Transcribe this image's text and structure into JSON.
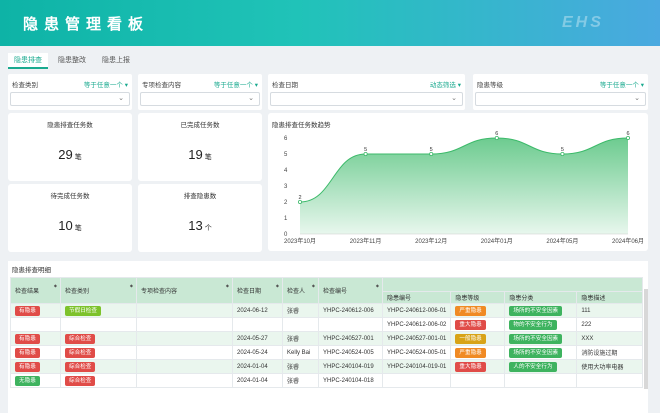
{
  "header": {
    "title": "隐患管理看板",
    "brand": "EHS"
  },
  "tabs": [
    "隐患排查",
    "隐患整改",
    "隐患上报"
  ],
  "filters": [
    {
      "label": "检查类别",
      "mode": "等于任意一个 ▾"
    },
    {
      "label": "专项检查内容",
      "mode": "等于任意一个 ▾"
    },
    {
      "label": "检查日期",
      "mode": "动态筛选 ▾"
    },
    {
      "label": "隐患等级",
      "mode": "等于任意一个 ▾"
    }
  ],
  "cards": [
    {
      "label": "隐患排查任务数",
      "value": "29",
      "unit": "笔"
    },
    {
      "label": "已完成任务数",
      "value": "19",
      "unit": "笔"
    },
    {
      "label": "待完成任务数",
      "value": "10",
      "unit": "笔"
    },
    {
      "label": "排查隐患数",
      "value": "13",
      "unit": "个"
    }
  ],
  "chart_title": "隐患排查任务数趋势",
  "chart_data": {
    "type": "area",
    "title": "隐患排查任务数趋势",
    "categories": [
      "2023年10月",
      "2023年11月",
      "2023年12月",
      "2024年01月",
      "2024年05月",
      "2024年06月"
    ],
    "values": [
      2,
      5,
      5,
      6,
      5,
      6
    ],
    "ylim": [
      0,
      6
    ],
    "yticks": [
      "0",
      "1",
      "2",
      "3",
      "4",
      "5",
      "6"
    ],
    "color": "#3cba6a",
    "grid": false
  },
  "table": {
    "title": "隐患排查明细",
    "headers": [
      "检查结果",
      "检查类别",
      "专项检查内容",
      "检查日期",
      "检查人",
      "检查编号"
    ],
    "group_header": "",
    "sub_headers": [
      "隐患编号",
      "隐患等级",
      "隐患分类",
      "隐患描述"
    ],
    "rows": [
      {
        "result": "有隐患",
        "result_color": "red",
        "category": "节假日检查",
        "category_color": "lime",
        "special": "",
        "date": "2024-06-12",
        "inspector": "张睿",
        "code": "YHPC-240612-006",
        "hazard_no": "YHPC-240612-006-01",
        "level": "严重隐患",
        "level_color": "orange",
        "class": "场所的不安全因素",
        "desc": "111"
      },
      {
        "result": "",
        "result_color": "",
        "category": "",
        "category_color": "",
        "special": "",
        "date": "",
        "inspector": "",
        "code": "",
        "hazard_no": "YHPC-240612-006-02",
        "level": "重大隐患",
        "level_color": "red",
        "class": "物的不安全行为",
        "desc": "222"
      },
      {
        "result": "有隐患",
        "result_color": "red",
        "category": "综合检查",
        "category_color": "red",
        "special": "",
        "date": "2024-05-27",
        "inspector": "张睿",
        "code": "YHPC-240527-001",
        "hazard_no": "YHPC-240527-001-01",
        "level": "一般隐患",
        "level_color": "gold",
        "class": "场所的不安全因素",
        "desc": "XXX"
      },
      {
        "result": "有隐患",
        "result_color": "red",
        "category": "综合检查",
        "category_color": "red",
        "special": "",
        "date": "2024-05-24",
        "inspector": "Kelly Bai",
        "code": "YHPC-240524-005",
        "hazard_no": "YHPC-240524-005-01",
        "level": "严重隐患",
        "level_color": "orange",
        "class": "场所的不安全因素",
        "desc": "消防设施过期"
      },
      {
        "result": "有隐患",
        "result_color": "red",
        "category": "综合检查",
        "category_color": "red",
        "special": "",
        "date": "2024-01-04",
        "inspector": "张睿",
        "code": "YHPC-240104-019",
        "hazard_no": "YHPC-240104-019-01",
        "level": "重大隐患",
        "level_color": "red",
        "class": "人的不安全行为",
        "desc": "使用大功率电器"
      },
      {
        "result": "无隐患",
        "result_color": "green",
        "category": "综合检查",
        "category_color": "red",
        "special": "",
        "date": "2024-01-04",
        "inspector": "张睿",
        "code": "YHPC-240104-018",
        "hazard_no": "",
        "level": "",
        "level_color": "",
        "class": "",
        "desc": ""
      }
    ]
  }
}
